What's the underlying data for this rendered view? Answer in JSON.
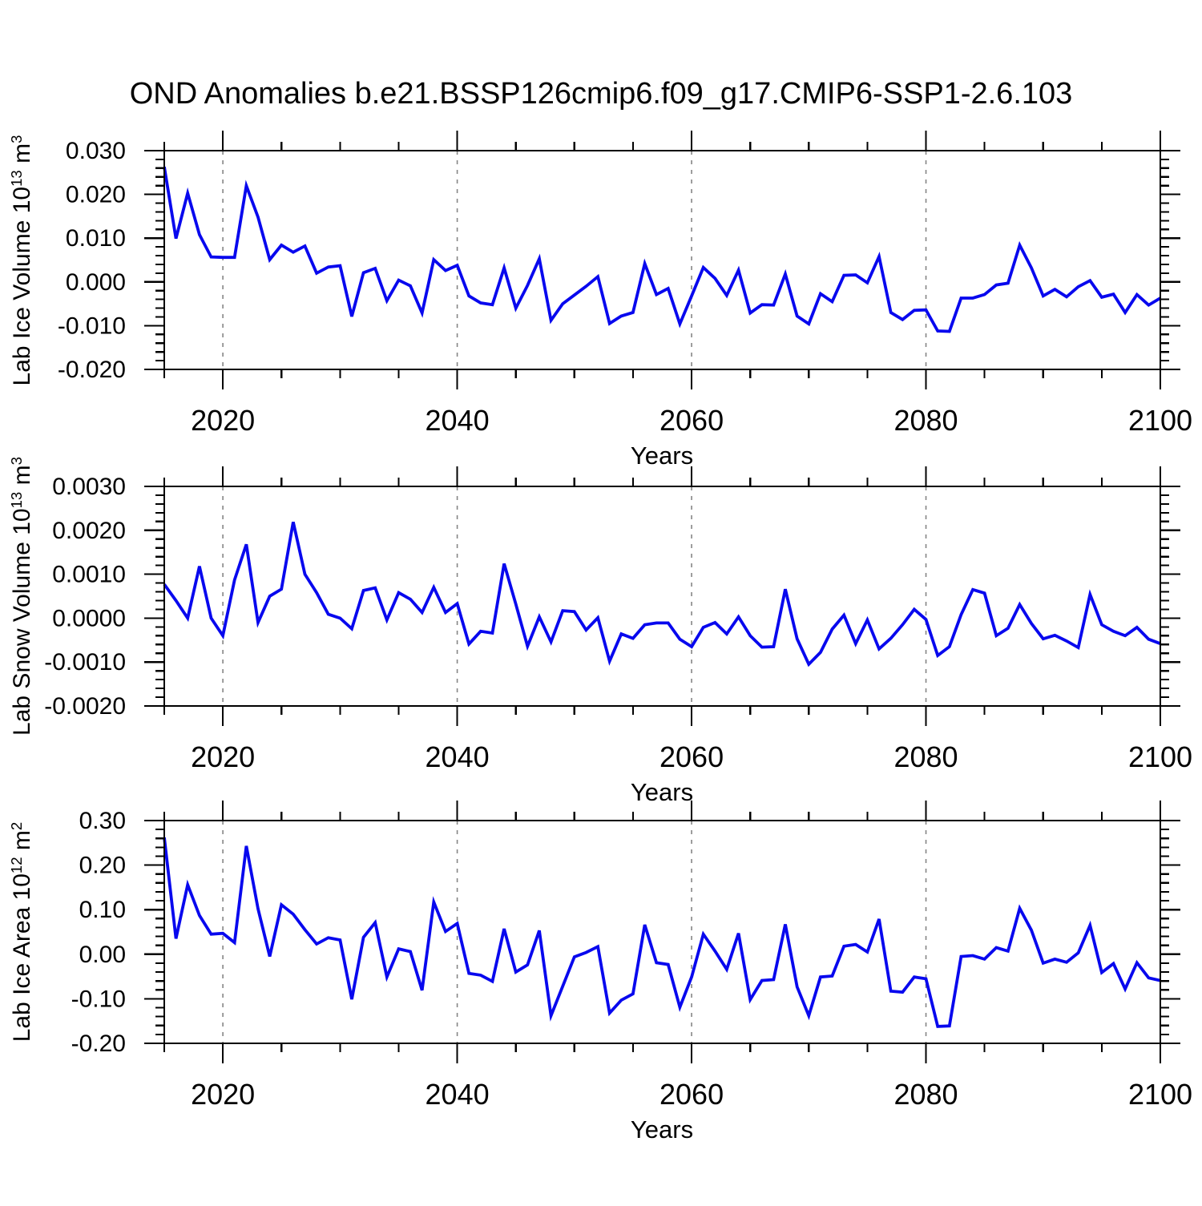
{
  "title": "OND Anomalies b.e21.BSSP126cmip6.f09_g17.CMIP6-SSP1-2.6.103",
  "colors": {
    "line": "#0808EE",
    "grid": "#858585",
    "frame": "#000000",
    "text": "#000000",
    "background": "#FFFFFF"
  },
  "x_axis": {
    "label": "Years",
    "range": [
      2015,
      2100
    ],
    "major_ticks": [
      2020,
      2040,
      2060,
      2080,
      2100
    ],
    "tick_labels": [
      "2020",
      "2040",
      "2060",
      "2080",
      "2100"
    ],
    "minor_step": 5,
    "grid_years": [
      2020,
      2040,
      2060,
      2080
    ]
  },
  "panels": [
    {
      "id": "lab-ice-volume",
      "ylabel": {
        "prefix": "Lab Ice Volume 10",
        "sup1": "13",
        "mid": " m",
        "sup2": "3"
      },
      "y_range": [
        -0.02,
        0.03
      ],
      "y_major_values": [
        0.03,
        0.02,
        0.01,
        0.0,
        -0.01,
        -0.02
      ],
      "y_tick_labels": [
        "0.030",
        "0.020",
        "0.010",
        "0.000",
        "-0.010",
        "-0.020"
      ],
      "y_minor_step": 0.002
    },
    {
      "id": "lab-snow-volume",
      "ylabel": {
        "prefix": "Lab Snow Volume 10",
        "sup1": "13",
        "mid": " m",
        "sup2": "3"
      },
      "y_range": [
        -0.002,
        0.003
      ],
      "y_major_values": [
        0.003,
        0.002,
        0.001,
        0.0,
        -0.001,
        -0.002
      ],
      "y_tick_labels": [
        "0.0030",
        "0.0020",
        "0.0010",
        "0.0000",
        "-0.0010",
        "-0.0020"
      ],
      "y_minor_step": 0.0002
    },
    {
      "id": "lab-ice-area",
      "ylabel": {
        "prefix": "Lab Ice Area 10",
        "sup1": "12",
        "mid": " m",
        "sup2": "2"
      },
      "y_range": [
        -0.2,
        0.3
      ],
      "y_major_values": [
        0.3,
        0.2,
        0.1,
        0.0,
        -0.1,
        -0.2
      ],
      "y_tick_labels": [
        "0.30",
        "0.20",
        "0.10",
        "0.00",
        "-0.10",
        "-0.20"
      ],
      "y_minor_step": 0.02
    }
  ],
  "chart_data": [
    {
      "type": "line",
      "name": "Lab Ice Volume OND anomaly",
      "units": "10^13 m^3",
      "xlabel": "Years",
      "x_start": 2015,
      "x_step": 1,
      "x_end": 2100,
      "ylim": [
        -0.02,
        0.03
      ],
      "values": [
        0.0263,
        0.0099,
        0.0203,
        0.0108,
        0.0057,
        0.0056,
        0.0056,
        0.022,
        0.0148,
        0.0051,
        0.0084,
        0.0068,
        0.0082,
        0.002,
        0.0034,
        0.0037,
        -0.0079,
        0.0021,
        0.0031,
        -0.0043,
        0.0004,
        -0.0009,
        -0.0071,
        0.0051,
        0.0026,
        0.0038,
        -0.0032,
        -0.0048,
        -0.0052,
        0.0032,
        -0.006,
        -0.0008,
        0.0053,
        -0.0088,
        -0.005,
        -0.003,
        -0.001,
        0.0012,
        -0.0095,
        -0.0078,
        -0.007,
        0.0042,
        -0.0029,
        -0.0015,
        -0.0096,
        -0.0032,
        0.0033,
        0.0008,
        -0.0031,
        0.0027,
        -0.0071,
        -0.0052,
        -0.0053,
        0.0018,
        -0.0078,
        -0.0096,
        -0.0027,
        -0.0045,
        0.0015,
        0.0016,
        -0.0002,
        0.0058,
        -0.007,
        -0.0086,
        -0.0065,
        -0.0064,
        -0.0112,
        -0.0113,
        -0.0037,
        -0.0037,
        -0.0029,
        -0.0007,
        -0.0003,
        0.0084,
        0.0032,
        -0.0032,
        -0.0017,
        -0.0034,
        -0.0011,
        0.0003,
        -0.0035,
        -0.0028,
        -0.007,
        -0.0029,
        -0.0053,
        -0.0037
      ]
    },
    {
      "type": "line",
      "name": "Lab Snow Volume OND anomaly",
      "units": "10^13 m^3",
      "xlabel": "Years",
      "x_start": 2015,
      "x_step": 1,
      "x_end": 2100,
      "ylim": [
        -0.002,
        0.003
      ],
      "values": [
        0.00077,
        0.0004,
        0.0,
        0.00118,
        0.0,
        -0.0004,
        0.00087,
        0.00168,
        -0.0001,
        0.0005,
        0.00066,
        0.00219,
        0.001,
        0.00058,
        9e-05,
        0.0,
        -0.00024,
        0.00063,
        0.00069,
        -4e-05,
        0.00058,
        0.00043,
        0.00013,
        0.0007,
        0.00013,
        0.00033,
        -0.00059,
        -0.0003,
        -0.00034,
        0.00124,
        0.00032,
        -0.00064,
        3e-05,
        -0.00054,
        0.00017,
        0.00015,
        -0.00027,
        1e-05,
        -0.00098,
        -0.00036,
        -0.00046,
        -0.00015,
        -0.00011,
        -0.00011,
        -0.00048,
        -0.00065,
        -0.00021,
        -0.0001,
        -0.00036,
        3e-05,
        -0.0004,
        -0.00066,
        -0.00065,
        0.00066,
        -0.00047,
        -0.00105,
        -0.00078,
        -0.00025,
        7e-05,
        -0.00058,
        -4e-05,
        -0.0007,
        -0.00046,
        -0.00015,
        0.0002,
        -3e-05,
        -0.00085,
        -0.00065,
        8e-05,
        0.00065,
        0.00057,
        -0.0004,
        -0.00023,
        0.00031,
        -0.00012,
        -0.00047,
        -0.00039,
        -0.00052,
        -0.00067,
        0.00054,
        -0.00015,
        -0.0003,
        -0.0004,
        -0.00021,
        -0.00048,
        -0.00058
      ]
    },
    {
      "type": "line",
      "name": "Lab Ice Area OND anomaly",
      "units": "10^12 m^2",
      "xlabel": "Years",
      "x_start": 2015,
      "x_step": 1,
      "x_end": 2100,
      "ylim": [
        -0.2,
        0.3
      ],
      "values": [
        0.262,
        0.035,
        0.156,
        0.087,
        0.045,
        0.047,
        0.026,
        0.243,
        0.102,
        -0.005,
        0.111,
        0.09,
        0.055,
        0.023,
        0.037,
        0.032,
        -0.101,
        0.038,
        0.071,
        -0.051,
        0.012,
        0.006,
        -0.081,
        0.117,
        0.051,
        0.069,
        -0.043,
        -0.047,
        -0.061,
        0.057,
        -0.04,
        -0.024,
        0.053,
        -0.138,
        -0.072,
        -0.006,
        0.004,
        0.017,
        -0.132,
        -0.103,
        -0.089,
        0.066,
        -0.019,
        -0.023,
        -0.119,
        -0.051,
        0.045,
        0.007,
        -0.034,
        0.047,
        -0.102,
        -0.059,
        -0.057,
        0.067,
        -0.073,
        -0.138,
        -0.051,
        -0.049,
        0.018,
        0.022,
        0.005,
        0.079,
        -0.083,
        -0.085,
        -0.051,
        -0.055,
        -0.162,
        -0.161,
        -0.005,
        -0.003,
        -0.011,
        0.015,
        0.007,
        0.103,
        0.054,
        -0.02,
        -0.011,
        -0.018,
        0.003,
        0.065,
        -0.041,
        -0.021,
        -0.078,
        -0.019,
        -0.053,
        -0.059
      ]
    }
  ]
}
